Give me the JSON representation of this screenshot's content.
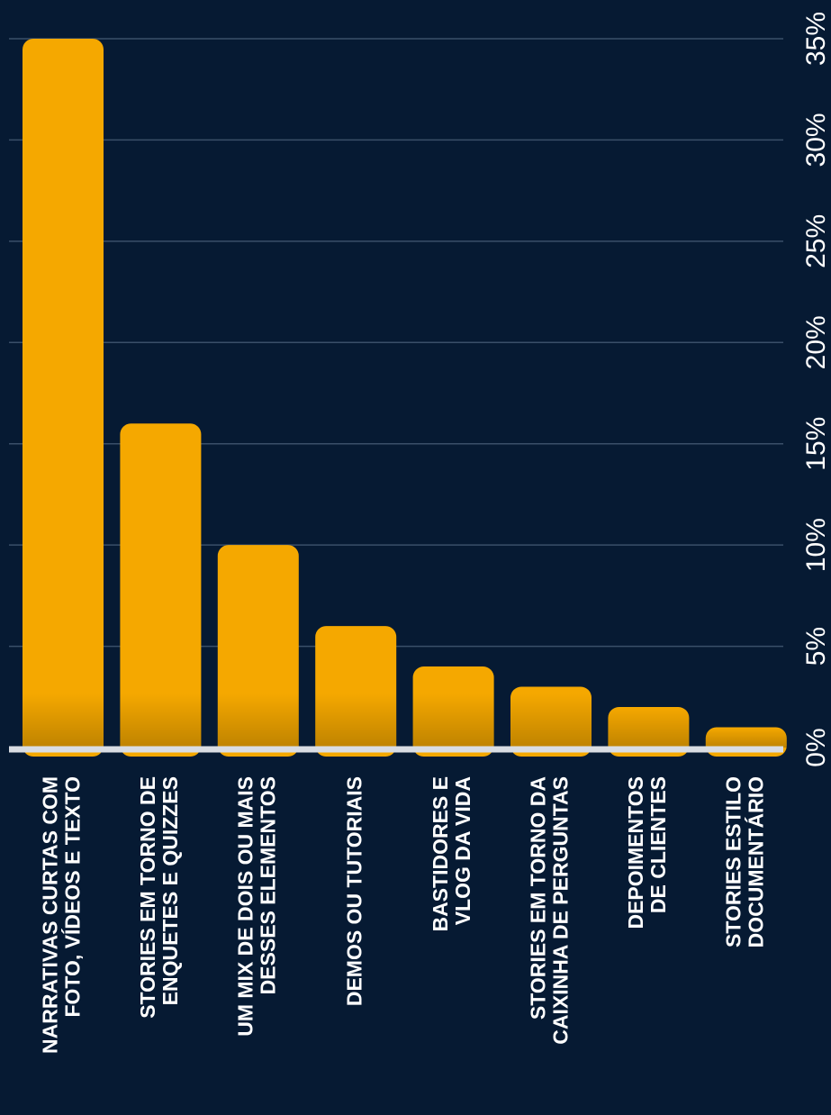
{
  "colors": {
    "background": "#061a33",
    "bar": "#f5a800",
    "grid": "#3a4f69",
    "baseline": "#d9dde3",
    "text": "#ffffff"
  },
  "chart_data": {
    "type": "bar",
    "orientation": "vertical-bars, image rotated 90 degrees (axis labels read bottom-to-top)",
    "categories": [
      [
        "NARRATIVAS CURTAS COM",
        "FOTO, VÍDEOS E TEXTO"
      ],
      [
        "STORIES EM TORNO DE",
        "ENQUETES E QUIZZES"
      ],
      [
        "UM MIX DE DOIS OU MAIS",
        "DESSES ELEMENTOS"
      ],
      [
        "DEMOS OU TUTORIAIS"
      ],
      [
        "BASTIDORES E",
        "VLOG DA VIDA"
      ],
      [
        "STORIES EM TORNO DA",
        "CAIXINHA DE PERGUNTAS"
      ],
      [
        "DEPOIMENTOS",
        "DE CLIENTES"
      ],
      [
        "STORIES ESTILO",
        "DOCUMENTÁRIO"
      ]
    ],
    "values": [
      35,
      16,
      10,
      6,
      4,
      3,
      2,
      1
    ],
    "unit": "%",
    "ylim": [
      0,
      35
    ],
    "yticks": [
      0,
      5,
      10,
      15,
      20,
      25,
      30,
      35
    ],
    "tick_labels": [
      "0%",
      "5%",
      "10%",
      "15%",
      "20%",
      "25%",
      "30%",
      "35%"
    ],
    "grid": true,
    "title": "",
    "xlabel": "",
    "ylabel": ""
  }
}
